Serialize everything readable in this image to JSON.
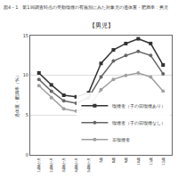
{
  "chart_data": {
    "type": "line",
    "title": "図4－1　第1回調査時点の受動喫煙の有無別にみた対象児の過体重・肥満率：男児",
    "subtitle": "【男児】",
    "y_label": "過体重・肥満率（%）",
    "categories": [
      "1歳6か月",
      "2歳6か月",
      "3歳6か月",
      "4歳6か月",
      "5歳6か月",
      "7歳",
      "8歳",
      "9歳",
      "10歳",
      "11歳",
      "12歳"
    ],
    "series": [
      {
        "name": "喫煙者（子の前喫煙あり）",
        "color": "#333333",
        "marker": "square",
        "values": [
          10.3,
          8.8,
          7.5,
          7.3,
          7.8,
          11.5,
          13.2,
          14.0,
          14.6,
          14.0,
          11.3
        ]
      },
      {
        "name": "喫煙者（子の前喫煙なし）",
        "color": "#666666",
        "marker": "circle",
        "values": [
          9.5,
          8.0,
          6.8,
          6.5,
          7.2,
          9.8,
          11.8,
          12.5,
          13.0,
          12.5,
          10.2
        ]
      },
      {
        "name": "非喫煙者",
        "color": "#a0a0a0",
        "marker": "circle",
        "values": [
          8.7,
          7.2,
          5.8,
          5.5,
          6.0,
          8.2,
          9.5,
          10.0,
          10.3,
          9.8,
          8.0
        ]
      }
    ],
    "ylim": [
      0,
      15
    ],
    "yticks": [
      0,
      5,
      10,
      15
    ],
    "grid": true,
    "legend": "lower right"
  }
}
